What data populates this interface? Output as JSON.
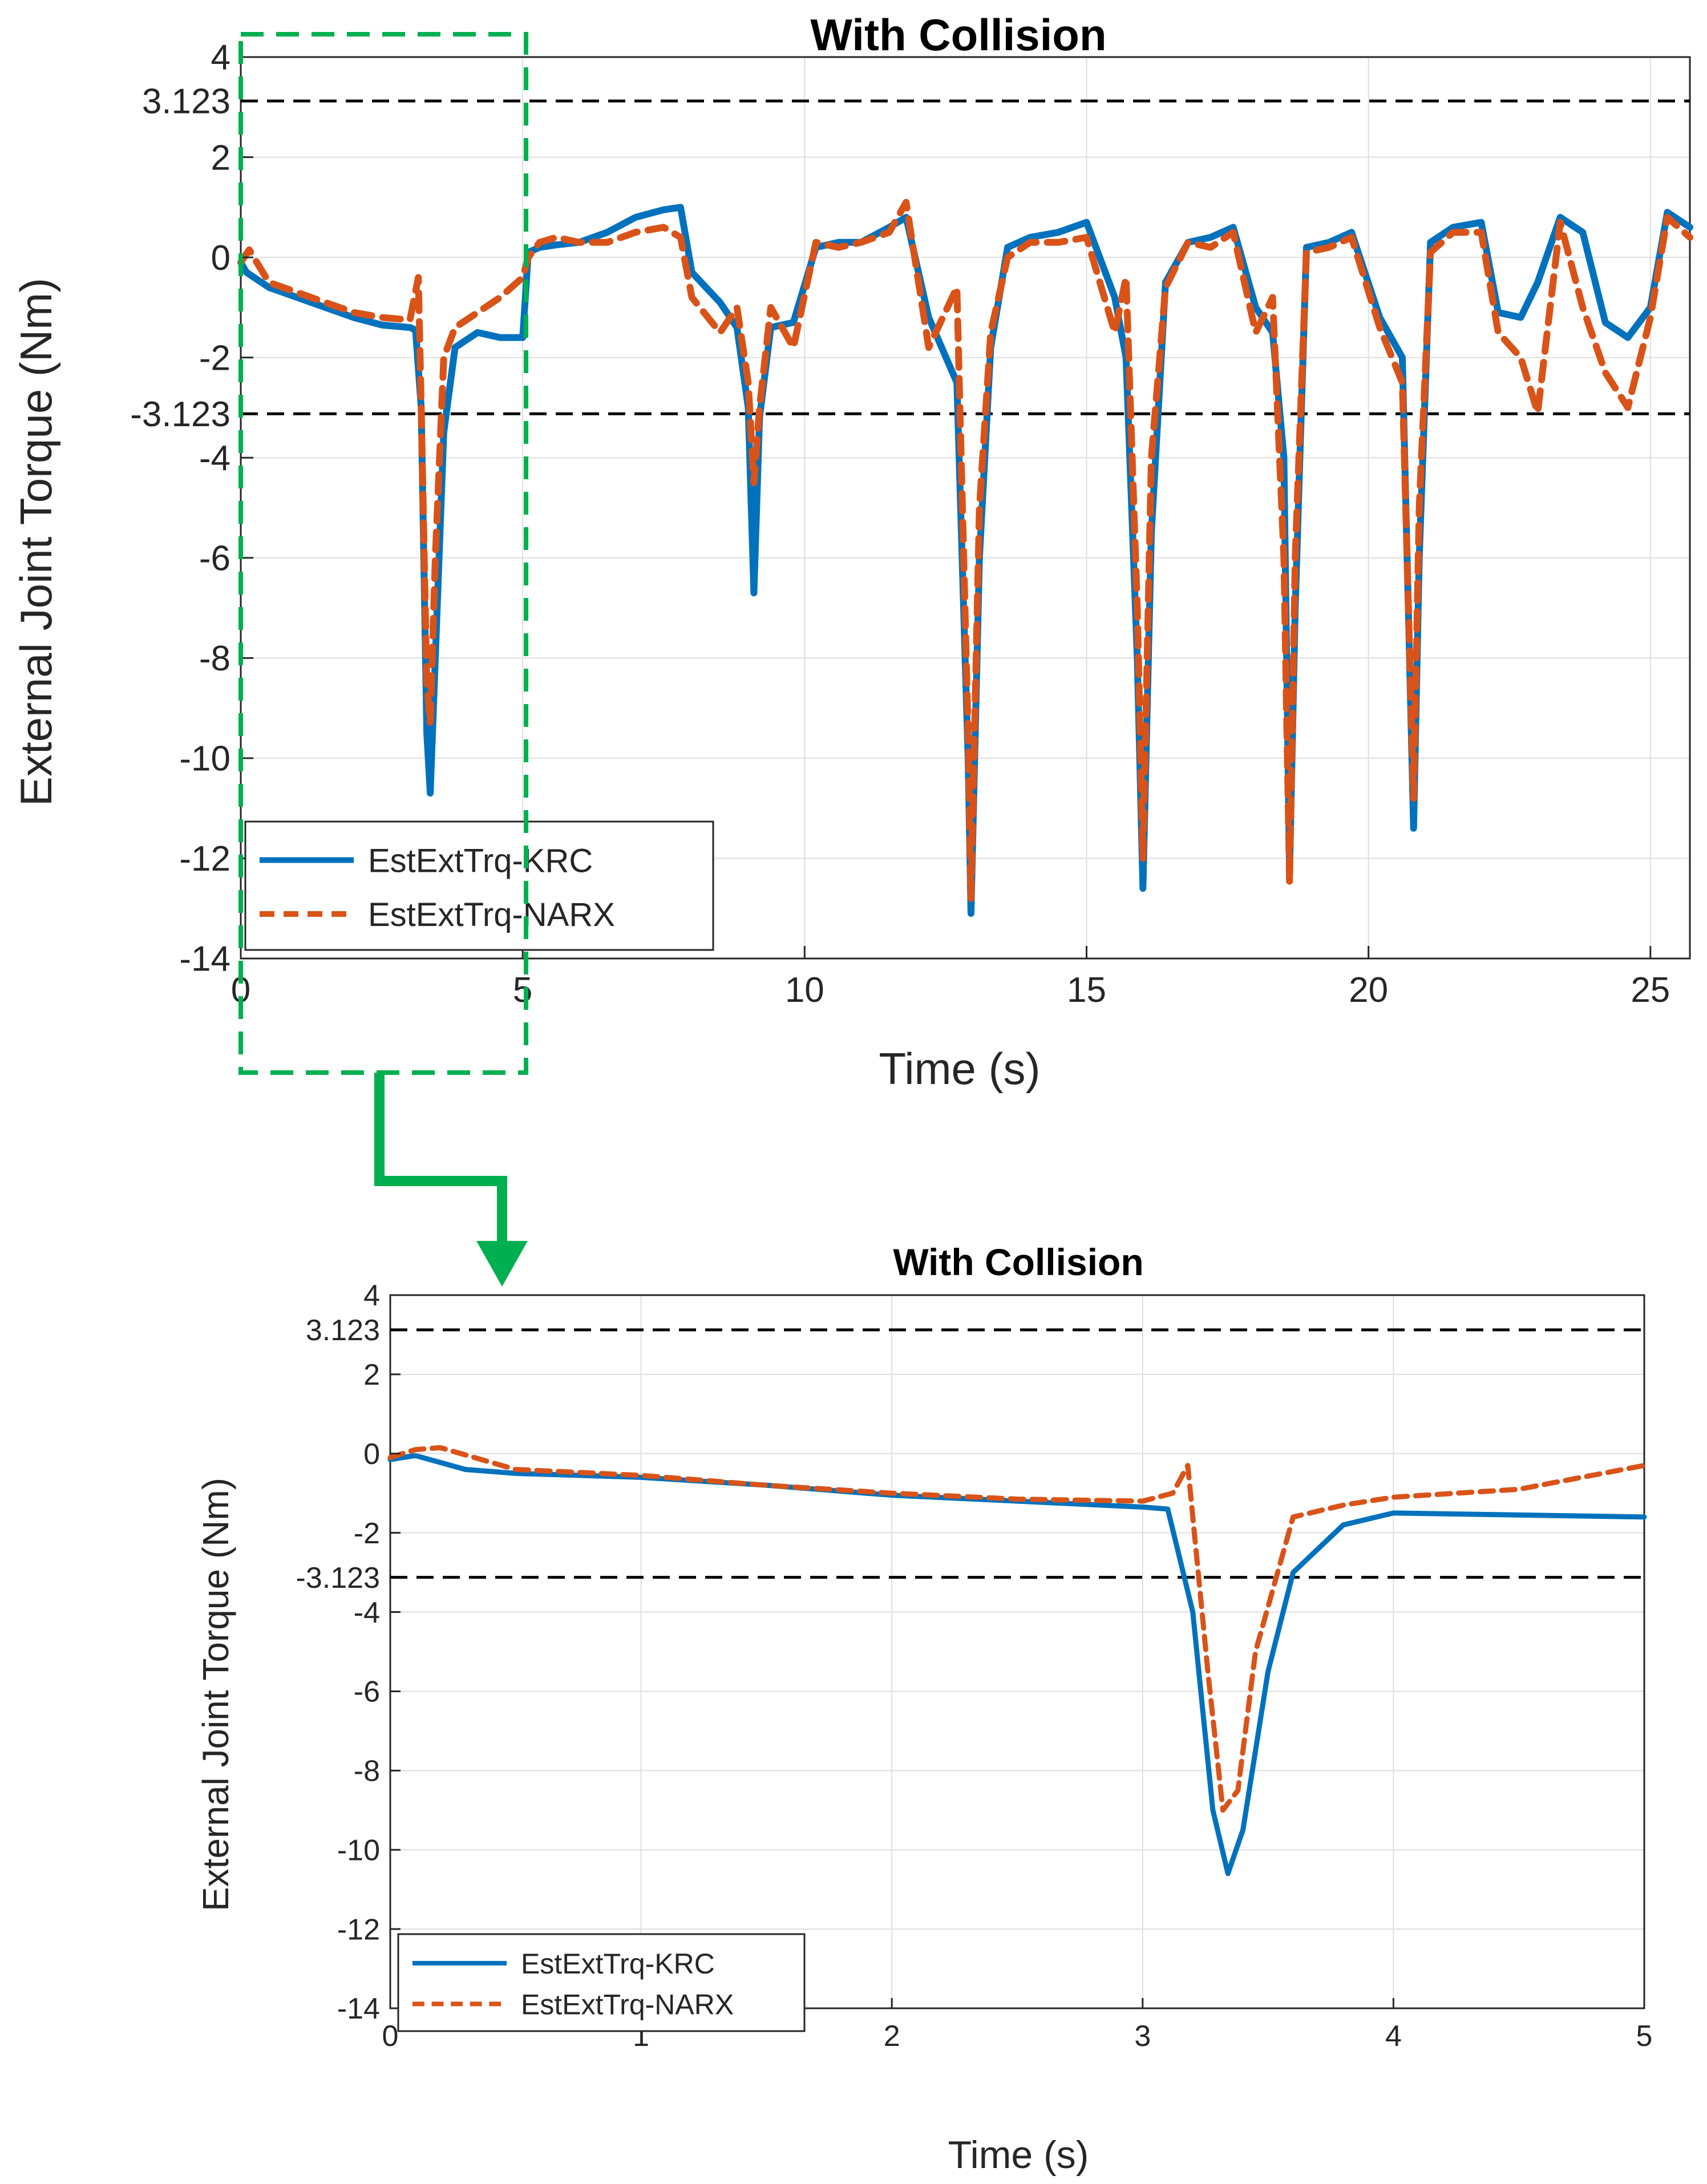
{
  "chart_data": [
    {
      "type": "line",
      "title": "With Collision",
      "xlabel": "Time (s)",
      "ylabel": "External Joint Torque (Nm)",
      "xlim": [
        0,
        25.7
      ],
      "ylim": [
        -14,
        4
      ],
      "xticks": [
        0,
        5,
        10,
        15,
        20,
        25
      ],
      "yticks": [
        4,
        2,
        0,
        -2,
        -4,
        -6,
        -8,
        -10,
        -12,
        -14
      ],
      "threshold_lines": [
        3.123,
        -3.123
      ],
      "threshold_labels": [
        "3.123",
        "-3.123"
      ],
      "grid": true,
      "legend_position": "bottom-left",
      "series": [
        {
          "name": "EstExtTrq-KRC",
          "color": "#0072BD",
          "x": [
            0,
            0.1,
            0.5,
            1,
            1.5,
            2,
            2.5,
            3.0,
            3.1,
            3.2,
            3.3,
            3.36,
            3.45,
            3.6,
            3.8,
            4.2,
            4.6,
            5.0,
            5.1,
            5.3,
            5.6,
            6.0,
            6.5,
            7.0,
            7.5,
            7.8,
            8.0,
            8.5,
            8.8,
            9.0,
            9.1,
            9.2,
            9.4,
            9.8,
            10.2,
            10.6,
            11.0,
            11.5,
            11.8,
            12.2,
            12.7,
            12.9,
            12.95,
            13.1,
            13.3,
            13.6,
            14.0,
            14.5,
            15.0,
            15.5,
            15.7,
            15.9,
            16.0,
            16.15,
            16.4,
            16.8,
            17.2,
            17.6,
            18.0,
            18.3,
            18.5,
            18.6,
            18.7,
            18.9,
            19.3,
            19.7,
            20.2,
            20.6,
            20.8,
            20.9,
            21.1,
            21.5,
            22.0,
            22.3,
            22.7,
            23.0,
            23.4,
            23.8,
            24.2,
            24.6,
            25.0,
            25.3,
            25.7
          ],
          "values": [
            -0.1,
            -0.3,
            -0.6,
            -0.8,
            -1.0,
            -1.2,
            -1.35,
            -1.4,
            -1.45,
            -3.0,
            -9.5,
            -10.7,
            -8.0,
            -3.5,
            -1.8,
            -1.5,
            -1.6,
            -1.6,
            0.1,
            0.2,
            0.25,
            0.3,
            0.5,
            0.8,
            0.95,
            1.0,
            -0.3,
            -0.9,
            -1.4,
            -3.0,
            -6.7,
            -3.2,
            -1.4,
            -1.3,
            0.2,
            0.3,
            0.3,
            0.6,
            0.8,
            -1.2,
            -2.5,
            -10.0,
            -13.1,
            -6.0,
            -1.8,
            0.2,
            0.4,
            0.5,
            0.7,
            -0.8,
            -2.0,
            -8.0,
            -12.6,
            -5.5,
            -0.5,
            0.3,
            0.4,
            0.6,
            -1.0,
            -1.5,
            -4.0,
            -12.3,
            -7.0,
            0.2,
            0.3,
            0.5,
            -1.2,
            -2.0,
            -11.4,
            -6.0,
            0.3,
            0.6,
            0.7,
            -1.1,
            -1.2,
            -0.5,
            0.8,
            0.5,
            -1.3,
            -1.6,
            -1.0,
            0.9,
            0.6
          ]
        },
        {
          "name": "EstExtTrq-NARX",
          "color": "#D95319",
          "x": [
            0,
            0.15,
            0.5,
            1,
            1.5,
            2,
            2.5,
            3.0,
            3.15,
            3.2,
            3.3,
            3.36,
            3.45,
            3.6,
            3.8,
            4.2,
            4.6,
            5.0,
            5.1,
            5.3,
            5.6,
            6.0,
            6.5,
            7.0,
            7.5,
            7.8,
            8.0,
            8.5,
            8.8,
            9.0,
            9.1,
            9.2,
            9.4,
            9.8,
            10.2,
            10.6,
            11.0,
            11.5,
            11.8,
            12.2,
            12.7,
            12.9,
            12.95,
            13.1,
            13.3,
            13.6,
            14.0,
            14.5,
            15.0,
            15.5,
            15.7,
            15.9,
            16.0,
            16.15,
            16.4,
            16.8,
            17.2,
            17.6,
            18.0,
            18.3,
            18.5,
            18.6,
            18.7,
            18.9,
            19.3,
            19.7,
            20.2,
            20.6,
            20.8,
            20.9,
            21.1,
            21.5,
            22.0,
            22.3,
            22.7,
            23.0,
            23.4,
            23.8,
            24.2,
            24.6,
            25.0,
            25.3,
            25.7
          ],
          "values": [
            -0.1,
            0.15,
            -0.5,
            -0.7,
            -0.9,
            -1.1,
            -1.2,
            -1.25,
            -0.4,
            -3.0,
            -8.5,
            -9.3,
            -6.0,
            -2.0,
            -1.4,
            -1.1,
            -0.8,
            -0.4,
            0.0,
            0.3,
            0.4,
            0.3,
            0.3,
            0.5,
            0.6,
            0.4,
            -0.8,
            -1.5,
            -1.0,
            -2.5,
            -4.5,
            -3.0,
            -1.0,
            -1.8,
            0.3,
            0.2,
            0.3,
            0.5,
            1.1,
            -1.8,
            -0.6,
            -9.5,
            -12.8,
            -5.0,
            -1.5,
            0.0,
            0.3,
            0.3,
            0.4,
            -1.5,
            -0.4,
            -7.0,
            -12.0,
            -4.0,
            -0.6,
            0.3,
            0.2,
            0.5,
            -1.5,
            -0.8,
            -6.0,
            -12.5,
            -6.0,
            0.1,
            0.2,
            0.4,
            -1.4,
            -2.5,
            -10.8,
            -5.0,
            0.1,
            0.5,
            0.5,
            -1.5,
            -2.0,
            -3.1,
            0.7,
            -1.0,
            -2.3,
            -3.0,
            -1.2,
            0.8,
            0.4
          ]
        }
      ],
      "legend": [
        "EstExtTrq-KRC",
        "EstExtTrq-NARX"
      ]
    },
    {
      "type": "line",
      "title": "With Collision",
      "xlabel": "Time (s)",
      "ylabel": "External Joint Torque (Nm)",
      "xlim": [
        0,
        5
      ],
      "ylim": [
        -14,
        4
      ],
      "xticks": [
        0,
        1,
        2,
        3,
        4,
        5
      ],
      "yticks": [
        4,
        2,
        0,
        -2,
        -4,
        -6,
        -8,
        -10,
        -12,
        -14
      ],
      "threshold_lines": [
        3.123,
        -3.123
      ],
      "threshold_labels": [
        "3.123",
        "-3.123"
      ],
      "grid": true,
      "legend_position": "bottom-left",
      "series": [
        {
          "name": "EstExtTrq-KRC",
          "color": "#0072BD",
          "x": [
            0,
            0.1,
            0.3,
            0.5,
            1.0,
            1.5,
            2.0,
            2.5,
            3.0,
            3.1,
            3.2,
            3.28,
            3.34,
            3.4,
            3.5,
            3.6,
            3.8,
            4.0,
            4.5,
            5.0
          ],
          "values": [
            -0.15,
            -0.05,
            -0.4,
            -0.5,
            -0.6,
            -0.8,
            -1.05,
            -1.2,
            -1.35,
            -1.4,
            -4.0,
            -9.0,
            -10.6,
            -9.5,
            -5.5,
            -3.0,
            -1.8,
            -1.5,
            -1.55,
            -1.6
          ]
        },
        {
          "name": "EstExtTrq-NARX",
          "color": "#D95319",
          "x": [
            0,
            0.1,
            0.2,
            0.5,
            1.0,
            1.5,
            2.0,
            2.5,
            3.0,
            3.12,
            3.18,
            3.26,
            3.32,
            3.38,
            3.45,
            3.6,
            3.8,
            4.0,
            4.5,
            5.0
          ],
          "values": [
            -0.1,
            0.1,
            0.15,
            -0.4,
            -0.55,
            -0.8,
            -1.0,
            -1.15,
            -1.2,
            -1.0,
            -0.3,
            -5.5,
            -9.0,
            -8.5,
            -5.0,
            -1.6,
            -1.3,
            -1.1,
            -0.9,
            -0.3
          ]
        }
      ],
      "legend": [
        "EstExtTrq-KRC",
        "EstExtTrq-NARX"
      ]
    }
  ],
  "zoom_box": {
    "color": "#00B050",
    "x_range": [
      0,
      5
    ]
  }
}
